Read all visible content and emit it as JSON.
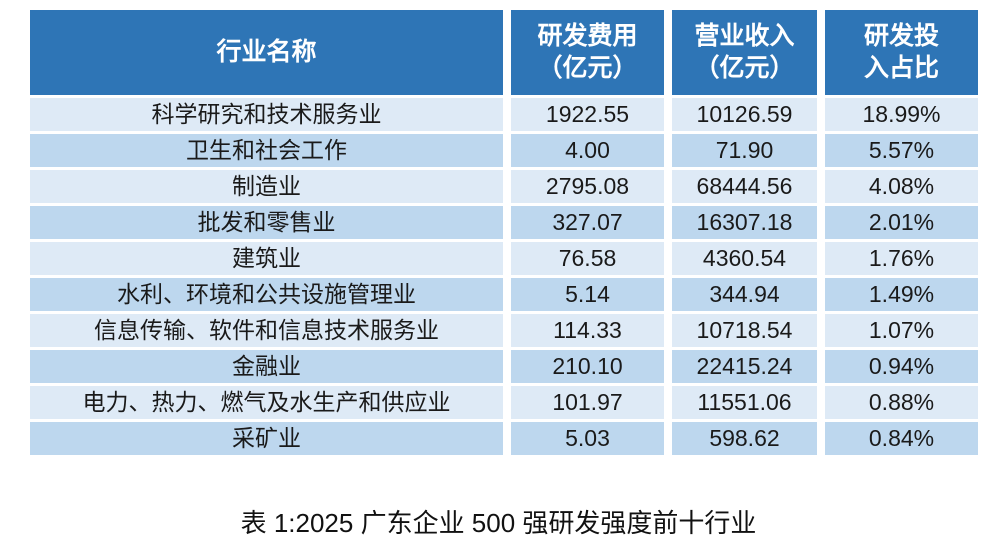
{
  "colors": {
    "header_bg": "#2E75B6",
    "header_text": "#FFFFFF",
    "row_light": "#DEEAF6",
    "row_alt": "#BDD7EE",
    "body_text": "#1A1A1A"
  },
  "table": {
    "headers": [
      {
        "label": "行业名称"
      },
      {
        "label": "研发费用\n（亿元）"
      },
      {
        "label": "营业收入\n（亿元）"
      },
      {
        "label": "研发投\n入占比"
      }
    ],
    "rows": [
      {
        "industry": "科学研究和技术服务业",
        "rnd_expense": "1922.55",
        "revenue": "10126.59",
        "ratio": "18.99%"
      },
      {
        "industry": "卫生和社会工作",
        "rnd_expense": "4.00",
        "revenue": "71.90",
        "ratio": "5.57%"
      },
      {
        "industry": "制造业",
        "rnd_expense": "2795.08",
        "revenue": "68444.56",
        "ratio": "4.08%"
      },
      {
        "industry": "批发和零售业",
        "rnd_expense": "327.07",
        "revenue": "16307.18",
        "ratio": "2.01%"
      },
      {
        "industry": "建筑业",
        "rnd_expense": "76.58",
        "revenue": "4360.54",
        "ratio": "1.76%"
      },
      {
        "industry": "水利、环境和公共设施管理业",
        "rnd_expense": "5.14",
        "revenue": "344.94",
        "ratio": "1.49%"
      },
      {
        "industry": "信息传输、软件和信息技术服务业",
        "rnd_expense": "114.33",
        "revenue": "10718.54",
        "ratio": "1.07%"
      },
      {
        "industry": "金融业",
        "rnd_expense": "210.10",
        "revenue": "22415.24",
        "ratio": "0.94%"
      },
      {
        "industry": "电力、热力、燃气及水生产和供应业",
        "rnd_expense": "101.97",
        "revenue": "11551.06",
        "ratio": "0.88%"
      },
      {
        "industry": "采矿业",
        "rnd_expense": "5.03",
        "revenue": "598.62",
        "ratio": "0.84%"
      }
    ]
  },
  "caption": "表 1:2025 广东企业 500 强研发强度前十行业",
  "chart_data": {
    "type": "table",
    "title": "表 1:2025 广东企业 500 强研发强度前十行业",
    "columns": [
      "行业名称",
      "研发费用（亿元）",
      "营业收入（亿元）",
      "研发投入占比"
    ],
    "rows": [
      [
        "科学研究和技术服务业",
        1922.55,
        10126.59,
        "18.99%"
      ],
      [
        "卫生和社会工作",
        4.0,
        71.9,
        "5.57%"
      ],
      [
        "制造业",
        2795.08,
        68444.56,
        "4.08%"
      ],
      [
        "批发和零售业",
        327.07,
        16307.18,
        "2.01%"
      ],
      [
        "建筑业",
        76.58,
        4360.54,
        "1.76%"
      ],
      [
        "水利、环境和公共设施管理业",
        5.14,
        344.94,
        "1.49%"
      ],
      [
        "信息传输、软件和信息技术服务业",
        114.33,
        10718.54,
        "1.07%"
      ],
      [
        "金融业",
        210.1,
        22415.24,
        "0.94%"
      ],
      [
        "电力、热力、燃气及水生产和供应业",
        101.97,
        11551.06,
        "0.88%"
      ],
      [
        "采矿业",
        5.03,
        598.62,
        "0.84%"
      ]
    ]
  }
}
